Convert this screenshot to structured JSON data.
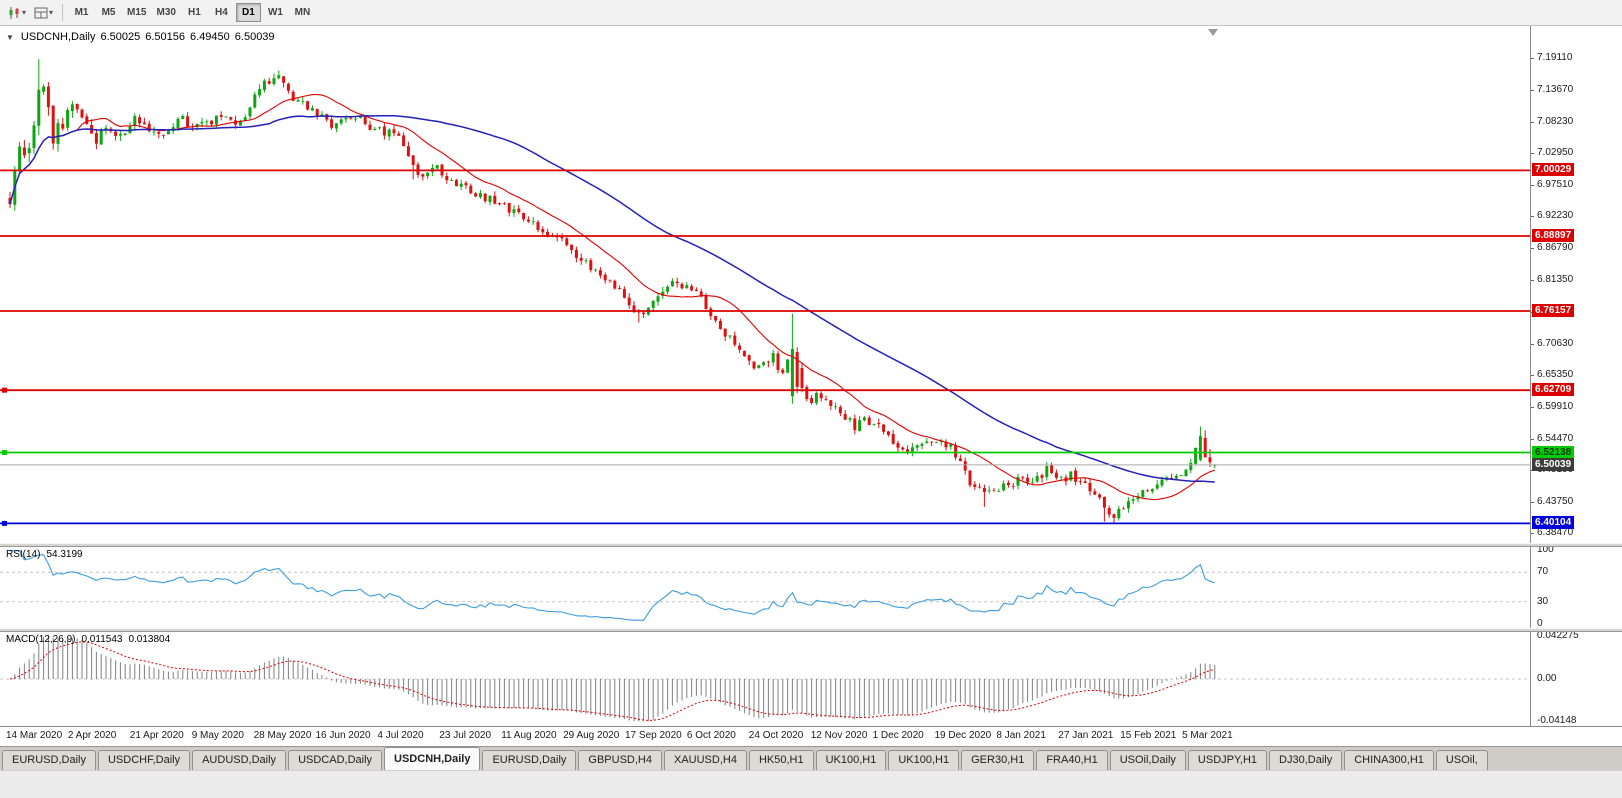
{
  "icons": {
    "collapse_triangle": "▼",
    "dropdown_chevron": "▾"
  },
  "toolbar": {
    "timeframes": [
      "M1",
      "M5",
      "M15",
      "M30",
      "H1",
      "H4",
      "D1",
      "W1",
      "MN"
    ],
    "active_timeframe": "D1"
  },
  "chart": {
    "symbol_title": "USDCNH,Daily",
    "ohlc": {
      "open": "6.50025",
      "high": "6.50156",
      "low": "6.49450",
      "close": "6.50039"
    },
    "y_ticks": [
      "7.19110",
      "7.13670",
      "7.08230",
      "7.02950",
      "6.97510",
      "6.92230",
      "6.86790",
      "6.81350",
      "6.76070",
      "6.70630",
      "6.65350",
      "6.59910",
      "6.54470",
      "6.49190",
      "6.43750",
      "6.38470"
    ],
    "x_labels": [
      "14 Mar 2020",
      "2 Apr 2020",
      "21 Apr 2020",
      "9 May 2020",
      "28 May 2020",
      "16 Jun 2020",
      "4 Jul 2020",
      "23 Jul 2020",
      "11 Aug 2020",
      "29 Aug 2020",
      "17 Sep 2020",
      "6 Oct 2020",
      "24 Oct 2020",
      "12 Nov 2020",
      "1 Dec 2020",
      "19 Dec 2020",
      "8 Jan 2021",
      "27 Jan 2021",
      "15 Feb 2021",
      "5 Mar 2021"
    ],
    "levels": [
      {
        "label": "7.00029",
        "price": 7.00029,
        "color": "#dd0000",
        "text": "#ffffff",
        "handle": false
      },
      {
        "label": "6.88897",
        "price": 6.88897,
        "color": "#dd0000",
        "text": "#ffffff",
        "handle": false
      },
      {
        "label": "6.76157",
        "price": 6.76157,
        "color": "#dd0000",
        "text": "#ffffff",
        "handle": false
      },
      {
        "label": "6.62709",
        "price": 6.62709,
        "color": "#dd0000",
        "text": "#ffffff",
        "handle": true
      },
      {
        "label": "6.52138",
        "price": 6.52138,
        "color": "#00cc00",
        "text": "#063b06",
        "handle": true
      },
      {
        "label": "6.40104",
        "price": 6.40104,
        "color": "#0000dd",
        "text": "#ffffff",
        "handle": true
      }
    ],
    "current_price": {
      "label": "6.50039",
      "price": 6.50039,
      "color": "#3c3c3c",
      "text": "#ffffff"
    }
  },
  "rsi": {
    "title": "RSI(14)",
    "value": "54.3199",
    "line_color": "#3c9cdc",
    "ticks": [
      {
        "v": 100,
        "label": "100"
      },
      {
        "v": 70,
        "label": "70"
      },
      {
        "v": 30,
        "label": "30"
      },
      {
        "v": 0,
        "label": "0"
      }
    ],
    "dashed_levels": [
      70,
      30
    ]
  },
  "macd": {
    "title": "MACD(12,26,9)",
    "value_main": "0.011543",
    "value_signal": "0.013804",
    "hist_color": "#808080",
    "signal_color": "#dd0000",
    "ticks": [
      {
        "v": 0.042275,
        "label": "0.042275"
      },
      {
        "v": 0,
        "label": "0.00"
      },
      {
        "v": -0.04148,
        "label": "-0.04148"
      }
    ]
  },
  "tabs": {
    "active_index": 4,
    "items": [
      "EURUSD,Daily",
      "USDCHF,Daily",
      "AUDUSD,Daily",
      "USDCAD,Daily",
      "USDCNH,Daily",
      "EURUSD,Daily",
      "GBPUSD,H4",
      "XAUUSD,H4",
      "HK50,H1",
      "UK100,H1",
      "UK100,H1",
      "GER30,H1",
      "FRA40,H1",
      "USOil,Daily",
      "USDJPY,H1",
      "DJ30,Daily",
      "CHINA300,H1",
      "USOil,"
    ]
  },
  "chart_data": {
    "type": "candlestick",
    "symbol": "USDCNH",
    "timeframe": "Daily",
    "bars": 252,
    "price_range": [
      6.3847,
      7.1911
    ],
    "up_color": "#0fa512",
    "down_color": "#dd1111",
    "ma_fast": {
      "period": 15,
      "color": "#e00000"
    },
    "ma_slow": {
      "period": 55,
      "color": "#2222bb"
    },
    "rsi_period": 14,
    "macd_params": [
      12,
      26,
      9
    ],
    "macd_clip": [
      -0.0415,
      0.0423
    ],
    "price_anchors": [
      [
        0,
        6.955
      ],
      [
        2,
        7.045
      ],
      [
        4,
        7.02
      ],
      [
        6,
        7.13
      ],
      [
        7,
        7.15
      ],
      [
        9,
        7.06
      ],
      [
        11,
        7.085
      ],
      [
        13,
        7.11
      ],
      [
        16,
        7.085
      ],
      [
        18,
        7.055
      ],
      [
        20,
        7.07
      ],
      [
        23,
        7.06
      ],
      [
        26,
        7.085
      ],
      [
        29,
        7.075
      ],
      [
        32,
        7.06
      ],
      [
        35,
        7.09
      ],
      [
        38,
        7.075
      ],
      [
        41,
        7.08
      ],
      [
        44,
        7.095
      ],
      [
        47,
        7.07
      ],
      [
        50,
        7.11
      ],
      [
        53,
        7.145
      ],
      [
        56,
        7.165
      ],
      [
        58,
        7.13
      ],
      [
        61,
        7.115
      ],
      [
        64,
        7.095
      ],
      [
        67,
        7.078
      ],
      [
        70,
        7.098
      ],
      [
        73,
        7.085
      ],
      [
        76,
        7.065
      ],
      [
        79,
        7.068
      ],
      [
        82,
        7.045
      ],
      [
        84,
        7.005
      ],
      [
        86,
        6.995
      ],
      [
        89,
        7.003
      ],
      [
        92,
        6.985
      ],
      [
        95,
        6.973
      ],
      [
        98,
        6.958
      ],
      [
        101,
        6.945
      ],
      [
        104,
        6.934
      ],
      [
        106,
        6.924
      ],
      [
        109,
        6.91
      ],
      [
        112,
        6.895
      ],
      [
        115,
        6.878
      ],
      [
        118,
        6.855
      ],
      [
        121,
        6.832
      ],
      [
        124,
        6.815
      ],
      [
        127,
        6.792
      ],
      [
        129,
        6.775
      ],
      [
        131,
        6.756
      ],
      [
        133,
        6.77
      ],
      [
        136,
        6.794
      ],
      [
        139,
        6.814
      ],
      [
        141,
        6.8
      ],
      [
        144,
        6.788
      ],
      [
        146,
        6.756
      ],
      [
        148,
        6.73
      ],
      [
        151,
        6.704
      ],
      [
        154,
        6.676
      ],
      [
        157,
        6.666
      ],
      [
        159,
        6.688
      ],
      [
        161,
        6.654
      ],
      [
        163,
        6.695
      ],
      [
        165,
        6.627
      ],
      [
        167,
        6.612
      ],
      [
        170,
        6.616
      ],
      [
        173,
        6.582
      ],
      [
        176,
        6.566
      ],
      [
        179,
        6.576
      ],
      [
        182,
        6.56
      ],
      [
        185,
        6.536
      ],
      [
        188,
        6.526
      ],
      [
        191,
        6.54
      ],
      [
        194,
        6.546
      ],
      [
        197,
        6.52
      ],
      [
        200,
        6.472
      ],
      [
        203,
        6.447
      ],
      [
        205,
        6.456
      ],
      [
        208,
        6.462
      ],
      [
        210,
        6.48
      ],
      [
        213,
        6.47
      ],
      [
        216,
        6.49
      ],
      [
        219,
        6.476
      ],
      [
        221,
        6.482
      ],
      [
        224,
        6.466
      ],
      [
        226,
        6.452
      ],
      [
        228,
        6.427
      ],
      [
        230,
        6.412
      ],
      [
        232,
        6.426
      ],
      [
        234,
        6.44
      ],
      [
        237,
        6.456
      ],
      [
        240,
        6.47
      ],
      [
        243,
        6.48
      ],
      [
        245,
        6.492
      ],
      [
        246,
        6.502
      ],
      [
        247,
        6.526
      ],
      [
        248,
        6.547
      ],
      [
        249,
        6.516
      ],
      [
        250,
        6.506
      ],
      [
        251,
        6.5004
      ]
    ],
    "volatility_anchors": [
      [
        0,
        0.028
      ],
      [
        8,
        0.022
      ],
      [
        15,
        0.015
      ],
      [
        40,
        0.011
      ],
      [
        55,
        0.013
      ],
      [
        80,
        0.011
      ],
      [
        120,
        0.011
      ],
      [
        150,
        0.012
      ],
      [
        163,
        0.016
      ],
      [
        170,
        0.011
      ],
      [
        200,
        0.012
      ],
      [
        235,
        0.011
      ],
      [
        247,
        0.012
      ],
      [
        251,
        0.006
      ]
    ],
    "overrides": [
      {
        "i": 6,
        "high": 7.189
      },
      {
        "i": 56,
        "high": 7.17
      },
      {
        "i": 84,
        "low": 6.985
      },
      {
        "i": 131,
        "low": 6.742
      },
      {
        "i": 163,
        "open": 6.617,
        "close": 6.697,
        "high": 6.757,
        "low": 6.604
      },
      {
        "i": 164,
        "open": 6.692,
        "close": 6.633,
        "high": 6.7,
        "low": 6.622
      },
      {
        "i": 203,
        "low": 6.429
      },
      {
        "i": 228,
        "low": 6.404
      },
      {
        "i": 230,
        "low": 6.401
      },
      {
        "i": 248,
        "open": 6.509,
        "close": 6.549,
        "high": 6.5655,
        "low": 6.506
      },
      {
        "i": 249,
        "open": 6.546,
        "close": 6.513
      },
      {
        "i": 250,
        "open": 6.513,
        "close": 6.505
      }
    ],
    "last_bar": {
      "open": 6.50025,
      "high": 6.50156,
      "low": 6.4945,
      "close": 6.50039
    }
  }
}
